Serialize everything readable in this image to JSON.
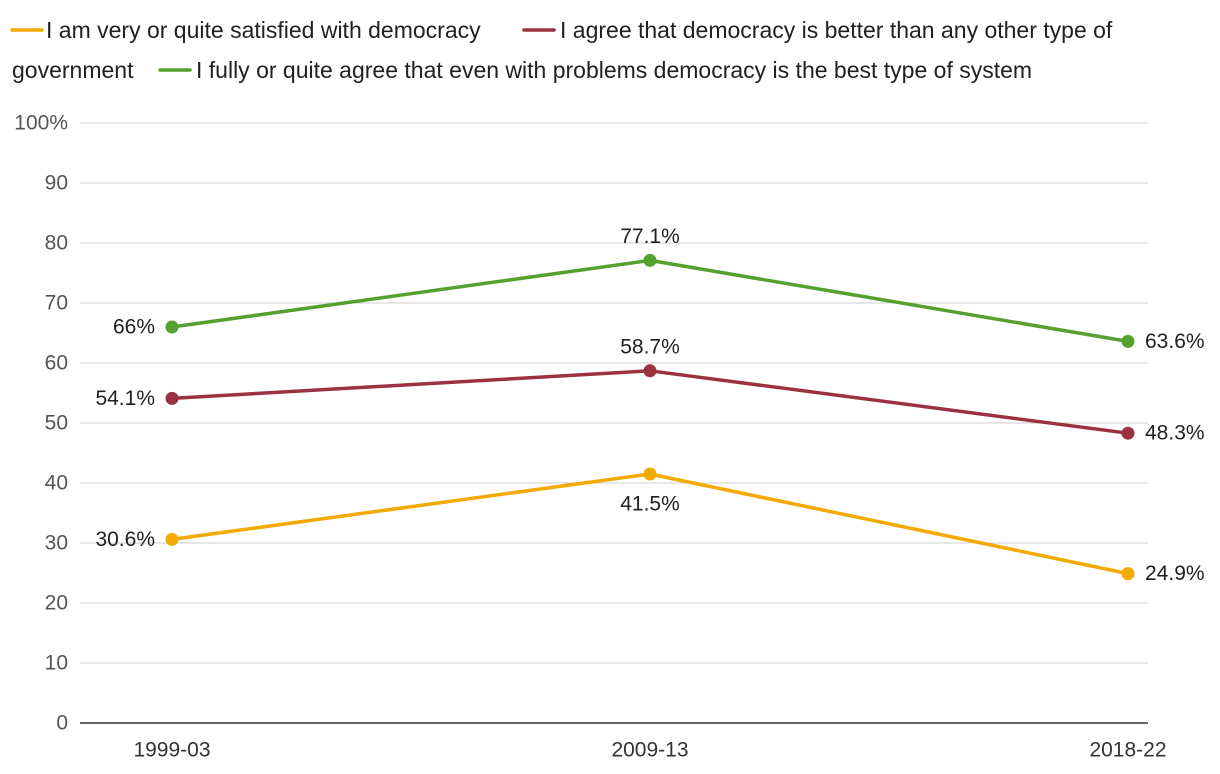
{
  "chart_data": {
    "type": "line",
    "categories": [
      "1999-03",
      "2009-13",
      "2018-22"
    ],
    "ylim": [
      0,
      100
    ],
    "yticks": [
      0,
      10,
      20,
      30,
      40,
      50,
      60,
      70,
      80,
      90,
      100
    ],
    "ytick_labels": [
      "0",
      "10",
      "20",
      "30",
      "40",
      "50",
      "60",
      "70",
      "80",
      "90",
      "100%"
    ],
    "grid": true,
    "legend_position": "top",
    "series": [
      {
        "name": "I am very or quite satisfied with democracy",
        "color": "#F2A900",
        "values": [
          30.6,
          41.5,
          24.9
        ],
        "labels": [
          "30.6%",
          "41.5%",
          "24.9%"
        ]
      },
      {
        "name": "I agree that democracy is better than any other type of government",
        "color": "#9B3240",
        "values": [
          54.1,
          58.7,
          48.3
        ],
        "labels": [
          "54.1%",
          "58.7%",
          "48.3%"
        ]
      },
      {
        "name": "I fully or quite agree that even with problems democracy is the best type of system",
        "color": "#55A02E",
        "values": [
          66,
          77.1,
          63.6
        ],
        "labels": [
          "66%",
          "77.1%",
          "63.6%"
        ]
      }
    ]
  }
}
